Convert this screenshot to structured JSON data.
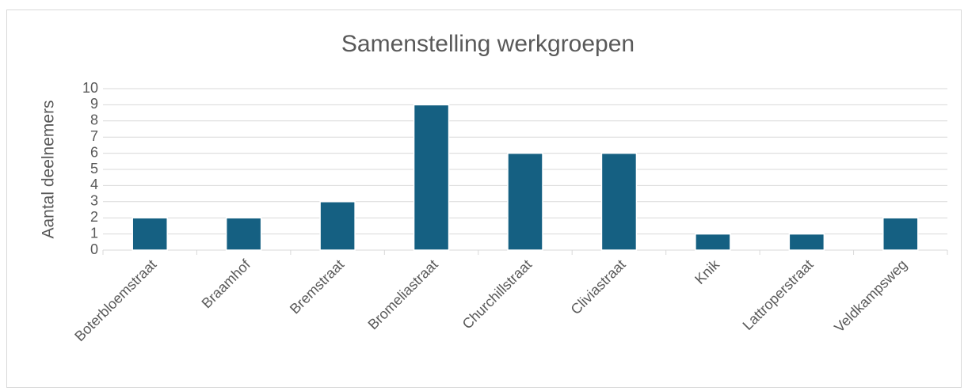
{
  "chart_data": {
    "type": "bar",
    "title": "Samenstelling werkgroepen",
    "y_label": "Aantal deelnemers",
    "categories": [
      "Boterbloemstraat",
      "Braamhof",
      "Bremstraat",
      "Bromeliastraat",
      "Churchillstraat",
      "Cliviastraat",
      "Knik",
      "Lattroperstraat",
      "Veldkampsweg"
    ],
    "values": [
      2,
      2,
      3,
      9,
      6,
      6,
      1,
      1,
      2
    ],
    "color": "#156082",
    "ylim": [
      0,
      10
    ],
    "yticks": [
      0,
      1,
      2,
      3,
      4,
      5,
      6,
      7,
      8,
      9,
      10
    ],
    "grid": true
  }
}
